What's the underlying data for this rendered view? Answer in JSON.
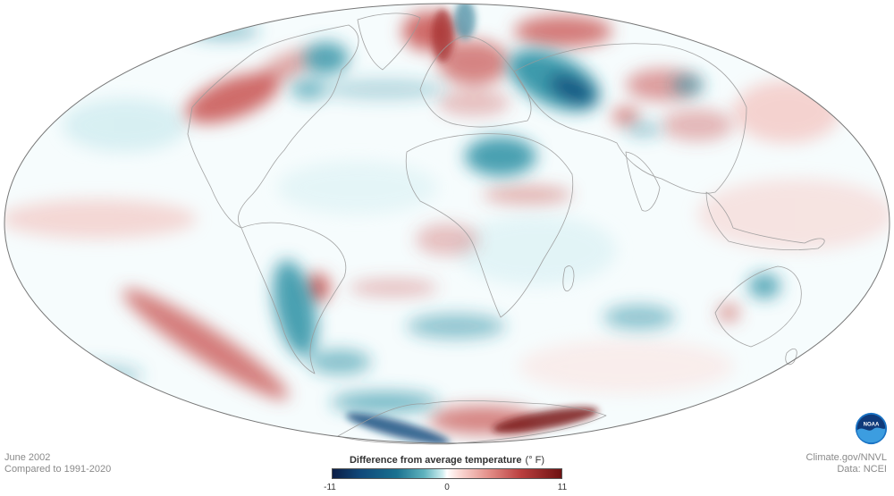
{
  "map": {
    "projection": "hammer-aitoff-like ellipse",
    "colors": {
      "cold_strong": "#10487a",
      "cold": "#2a8fa3",
      "warm": "#c85150",
      "warm_strong": "#7a1616",
      "border": "#9a9a9a"
    }
  },
  "info": {
    "date": "June 2002",
    "baseline": "Compared to 1991-2020",
    "source_site": "Climate.gov/NNVL",
    "data_source": "Data: NCEI"
  },
  "legend": {
    "title": "Difference from average temperature",
    "unit": "(° F)",
    "min": "-11",
    "mid": "0",
    "max": "11"
  },
  "logo": {
    "text": "NOAA",
    "icon": "noaa-logo-icon"
  }
}
